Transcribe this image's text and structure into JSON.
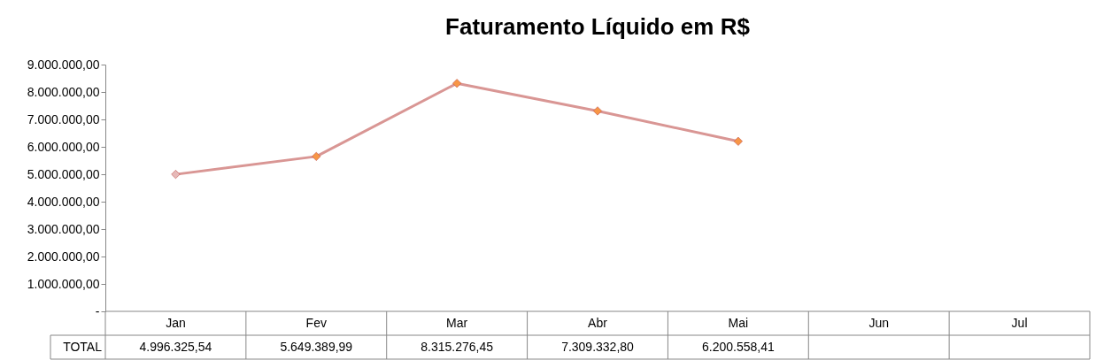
{
  "chart_data": {
    "type": "line",
    "title": "Faturamento Líquido em R$",
    "categories": [
      "Jan",
      "Fev",
      "Mar",
      "Abr",
      "Mai",
      "Jun",
      "Jul"
    ],
    "series": [
      {
        "name": "TOTAL",
        "color": "#d99694",
        "colors": [
          "#e6b9b8",
          "#f79646",
          "#f79646",
          "#f79646",
          "#f79646",
          null,
          null
        ],
        "values": [
          4996325.54,
          5649389.99,
          8315276.45,
          7309332.8,
          6200558.41,
          null,
          null
        ],
        "value_labels": [
          "4.996.325,54",
          "5.649.389,99",
          "8.315.276,45",
          "7.309.332,80",
          "6.200.558,41",
          null,
          null
        ]
      }
    ],
    "ylim": [
      0,
      9000000
    ],
    "yticks": [
      {
        "value": 0,
        "label": "-"
      },
      {
        "value": 1000000,
        "label": "1.000.000,00"
      },
      {
        "value": 2000000,
        "label": "2.000.000,00"
      },
      {
        "value": 3000000,
        "label": "3.000.000,00"
      },
      {
        "value": 4000000,
        "label": "4.000.000,00"
      },
      {
        "value": 5000000,
        "label": "5.000.000,00"
      },
      {
        "value": 6000000,
        "label": "6.000.000,00"
      },
      {
        "value": 7000000,
        "label": "7.000.000,00"
      },
      {
        "value": 8000000,
        "label": "8.000.000,00"
      },
      {
        "value": 9000000,
        "label": "9.000.000,00"
      }
    ],
    "marker": "diamond",
    "line_style": "solid",
    "data_labels": false
  }
}
